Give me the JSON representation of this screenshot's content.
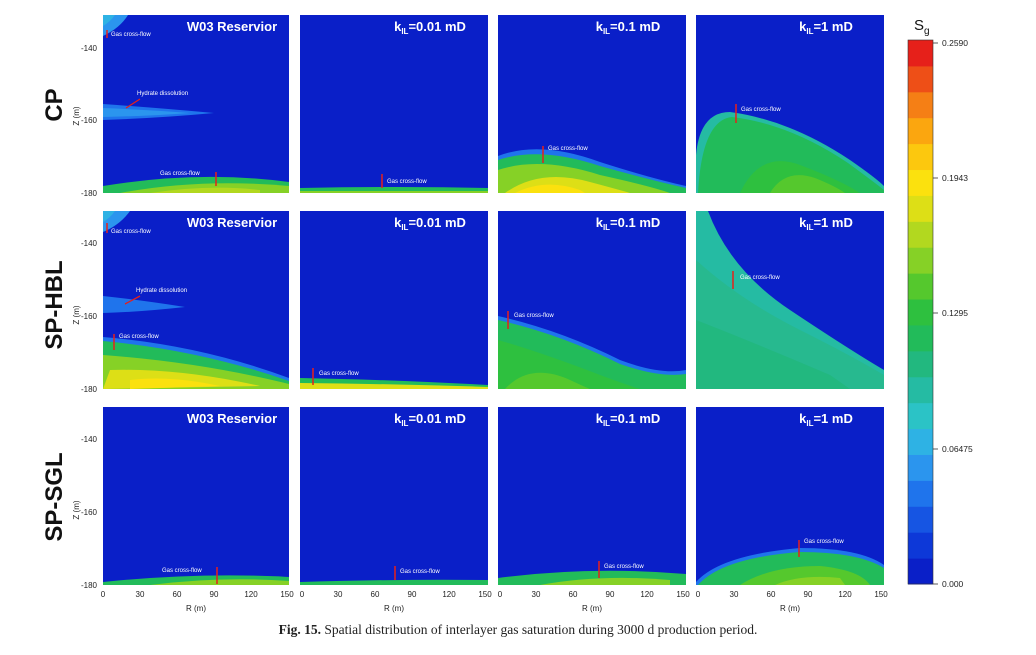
{
  "rows": [
    {
      "label": "CP"
    },
    {
      "label": "SP-HBL"
    },
    {
      "label": "SP-SGL"
    }
  ],
  "columns": [
    {
      "title": "W03 Reservior",
      "title_sub": ""
    },
    {
      "title": "k",
      "title_sub": "IL",
      "title_rest": "=0.01 mD"
    },
    {
      "title": "k",
      "title_sub": "IL",
      "title_rest": "=0.1 mD"
    },
    {
      "title": "k",
      "title_sub": "IL",
      "title_rest": "=1 mD"
    }
  ],
  "axes": {
    "x_label": "R (m)",
    "y_label": "Z (m)",
    "x_ticks": [
      "0",
      "30",
      "60",
      "90",
      "120",
      "150"
    ],
    "y_ticks": [
      "-140",
      "-160",
      "-180"
    ],
    "x_range": [
      0,
      150
    ],
    "y_range": [
      -182,
      -134
    ]
  },
  "colorbar": {
    "title_main": "S",
    "title_sub": "g",
    "ticks": [
      "0.2590",
      "0.1943",
      "0.1295",
      "0.06475",
      "0.000"
    ],
    "colors": [
      "#0a1fc8",
      "#0d38d8",
      "#1655e3",
      "#1f74ec",
      "#2b95ee",
      "#2eb2e4",
      "#2bc3c6",
      "#25bba3",
      "#22b87f",
      "#22bb5a",
      "#2ec03f",
      "#55c82d",
      "#86d126",
      "#b2d81f",
      "#dddf16",
      "#fbe10e",
      "#fcc80e",
      "#fba60f",
      "#f57f15",
      "#ee4f17",
      "#e6201a"
    ]
  },
  "annotations": {
    "gas_cross_flow": "Gas cross-flow",
    "hydrate_dissolution": "Hydrate dissolution"
  },
  "caption": {
    "label": "Fig. 15.",
    "text": "Spatial distribution of interlayer gas saturation during 3000 d production period."
  }
}
